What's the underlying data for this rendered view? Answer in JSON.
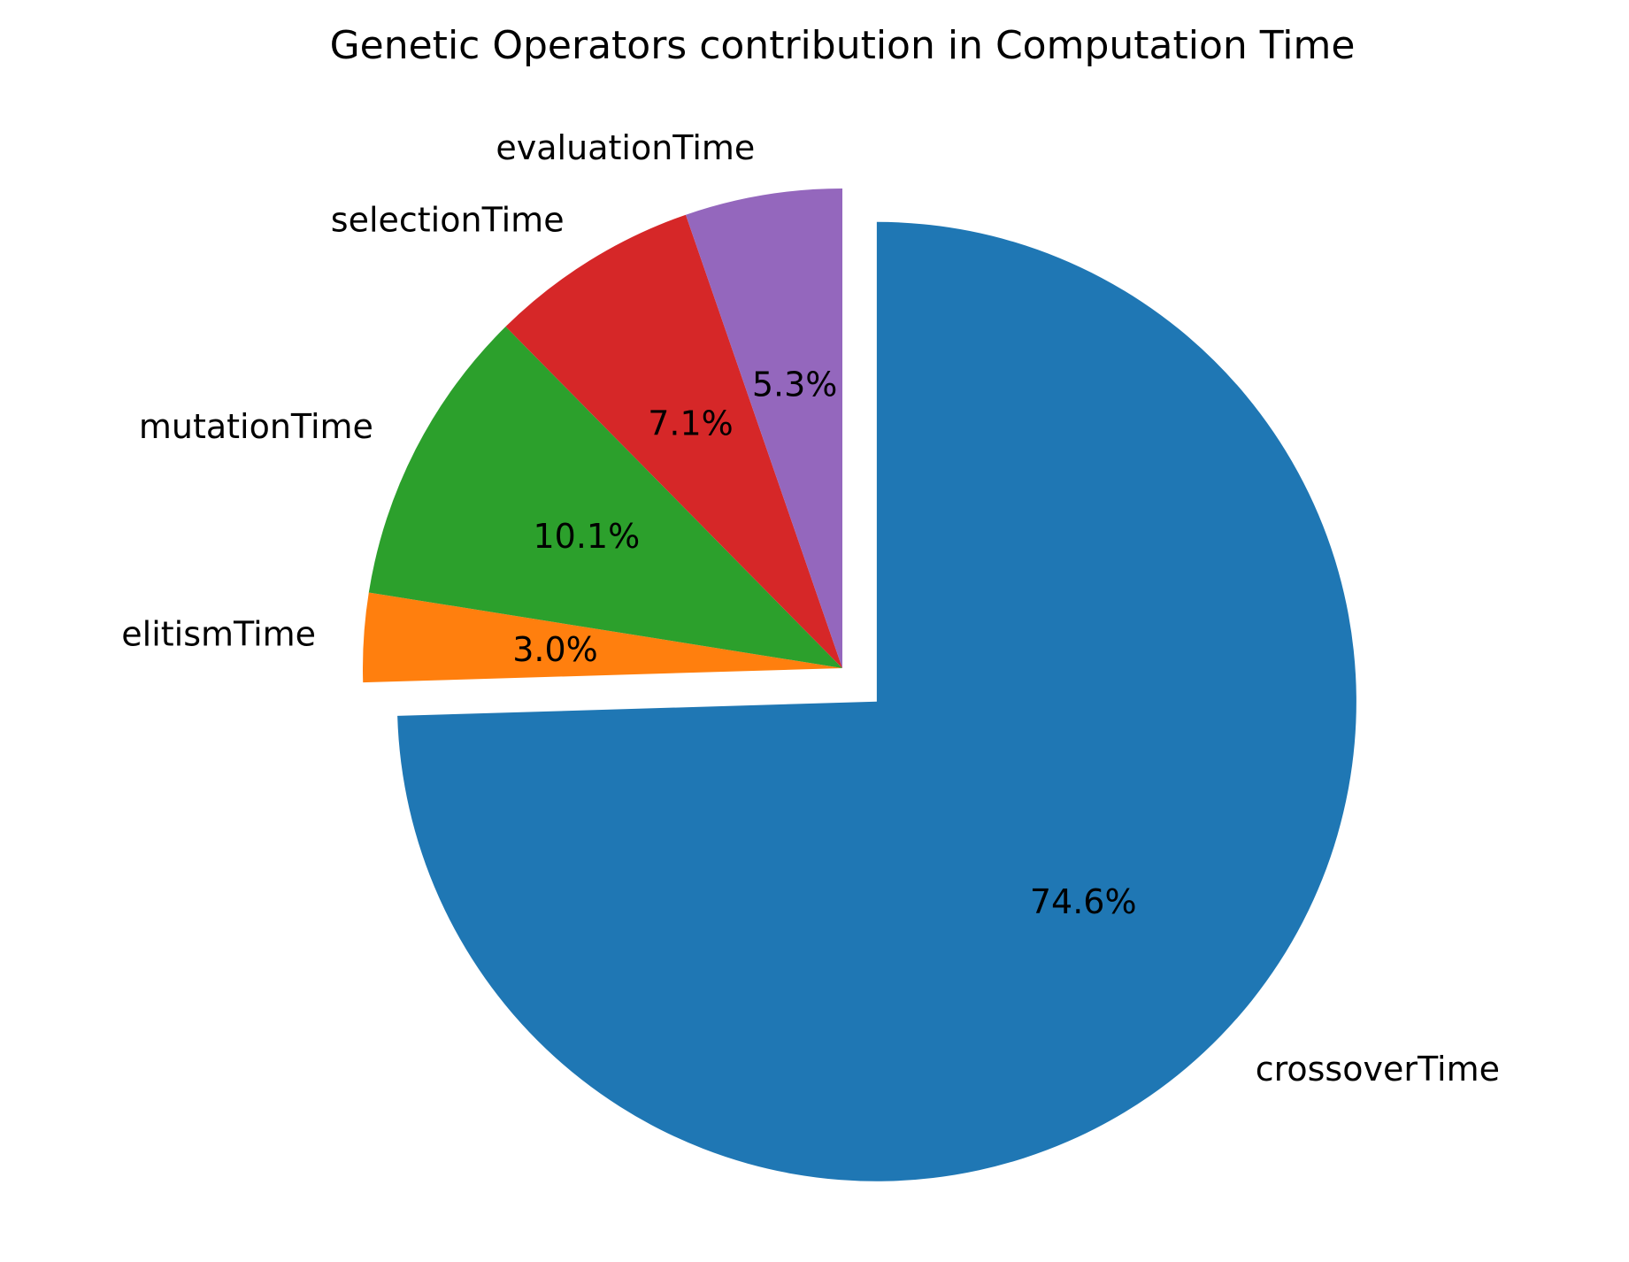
{
  "chart_data": {
    "type": "pie",
    "title": "Genetic Operators contribution in Computation Time",
    "start_angle_deg": 90,
    "direction": "clockwise",
    "slices": [
      {
        "name": "crossoverTime",
        "value": 74.6,
        "label": "74.6%",
        "color": "#1f77b4",
        "explode": 0.1
      },
      {
        "name": "elitismTime",
        "value": 3.0,
        "label": "3.0%",
        "color": "#ff7f0e",
        "explode": 0
      },
      {
        "name": "mutationTime",
        "value": 10.1,
        "label": "10.1%",
        "color": "#2ca02c",
        "explode": 0
      },
      {
        "name": "selectionTime",
        "value": 7.1,
        "label": "7.1%",
        "color": "#d62728",
        "explode": 0
      },
      {
        "name": "evaluationTime",
        "value": 5.3,
        "label": "5.3%",
        "color": "#9467bd",
        "explode": 0
      }
    ]
  }
}
